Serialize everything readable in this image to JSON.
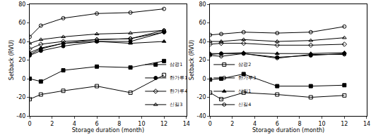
{
  "chart_data": [
    {
      "type": "line",
      "x_label": "Storage duration (month)",
      "y_label": "Setback (RVU)",
      "x": [
        0,
        1,
        3,
        6,
        9,
        12
      ],
      "xlim": [
        0,
        14
      ],
      "xticks": [
        0,
        2,
        4,
        6,
        8,
        10,
        12,
        14
      ],
      "ylim": [
        -40,
        80
      ],
      "yticks": [
        -40,
        -20,
        0,
        20,
        40,
        60,
        80
      ],
      "grid": false,
      "legend": "lower right",
      "series": [
        {
          "name": "삼광1",
          "color": "#000000",
          "marker": "square",
          "line_style": "solid",
          "values": [
            0,
            -3,
            9,
            13,
            12,
            19
          ]
        },
        {
          "name": "삼광2",
          "color": "#000000",
          "marker": "square-open",
          "line_style": "solid",
          "values": [
            -22,
            -17,
            -13,
            -8,
            -15,
            4
          ]
        },
        {
          "name": "한가루1",
          "color": "#000000",
          "marker": "circle",
          "line_style": "solid",
          "values": [
            25,
            30,
            35,
            40,
            40,
            50
          ]
        },
        {
          "name": "한가루3",
          "color": "#000000",
          "marker": "circle-open",
          "line_style": "solid",
          "values": [
            45,
            57,
            65,
            70,
            71,
            75
          ]
        },
        {
          "name": "한가루4",
          "color": "#000000",
          "marker": "diamond-open",
          "line_style": "solid",
          "values": [
            32,
            37,
            40,
            42,
            43,
            50
          ]
        },
        {
          "name": "신길1",
          "color": "#000000",
          "marker": "triangle-up",
          "line_style": "solid",
          "values": [
            28,
            33,
            38,
            40,
            38,
            40
          ]
        },
        {
          "name": "신길3",
          "color": "#000000",
          "marker": "triangle-up-open",
          "line_style": "solid",
          "values": [
            38,
            42,
            45,
            48,
            49,
            52
          ]
        },
        {
          "name": "신길4",
          "color": "#000000",
          "marker": "hexagon-open",
          "line_style": "solid",
          "values": [
            26,
            32,
            38,
            42,
            43,
            52
          ]
        }
      ]
    },
    {
      "type": "line",
      "x_label": "Storage duration (month)",
      "y_label": "Setback (RVU)",
      "x": [
        0,
        1,
        3,
        6,
        9,
        12
      ],
      "xlim": [
        0,
        14
      ],
      "xticks": [
        0,
        2,
        4,
        6,
        8,
        10,
        12,
        14
      ],
      "ylim": [
        -40,
        80
      ],
      "yticks": [
        -40,
        -20,
        0,
        20,
        40,
        60,
        80
      ],
      "grid": false,
      "series": [
        {
          "name": "삼광1",
          "color": "#000000",
          "marker": "square",
          "line_style": "solid",
          "values": [
            -1,
            0,
            5,
            -8,
            -8,
            -7
          ]
        },
        {
          "name": "삼광2",
          "color": "#000000",
          "marker": "square-open",
          "line_style": "solid",
          "values": [
            -15,
            -22,
            -15,
            -17,
            -20,
            -18
          ]
        },
        {
          "name": "한가루1",
          "color": "#000000",
          "marker": "circle",
          "line_style": "solid",
          "values": [
            26,
            27,
            27,
            23,
            25,
            27
          ]
        },
        {
          "name": "한가루3",
          "color": "#000000",
          "marker": "circle-open",
          "line_style": "solid",
          "values": [
            47,
            48,
            50,
            49,
            50,
            56
          ]
        },
        {
          "name": "한가루4",
          "color": "#000000",
          "marker": "diamond-open",
          "line_style": "solid",
          "values": [
            37,
            38,
            38,
            36,
            36,
            37
          ]
        },
        {
          "name": "신길1",
          "color": "#000000",
          "marker": "triangle-up",
          "line_style": "solid",
          "values": [
            27,
            27,
            28,
            27,
            27,
            28
          ]
        },
        {
          "name": "신길3",
          "color": "#000000",
          "marker": "triangle-up-open",
          "line_style": "solid",
          "values": [
            40,
            40,
            42,
            40,
            41,
            44
          ]
        },
        {
          "name": "신길4",
          "color": "#000000",
          "marker": "hexagon-open",
          "line_style": "solid",
          "values": [
            25,
            24,
            27,
            22,
            26,
            26
          ]
        }
      ]
    }
  ]
}
